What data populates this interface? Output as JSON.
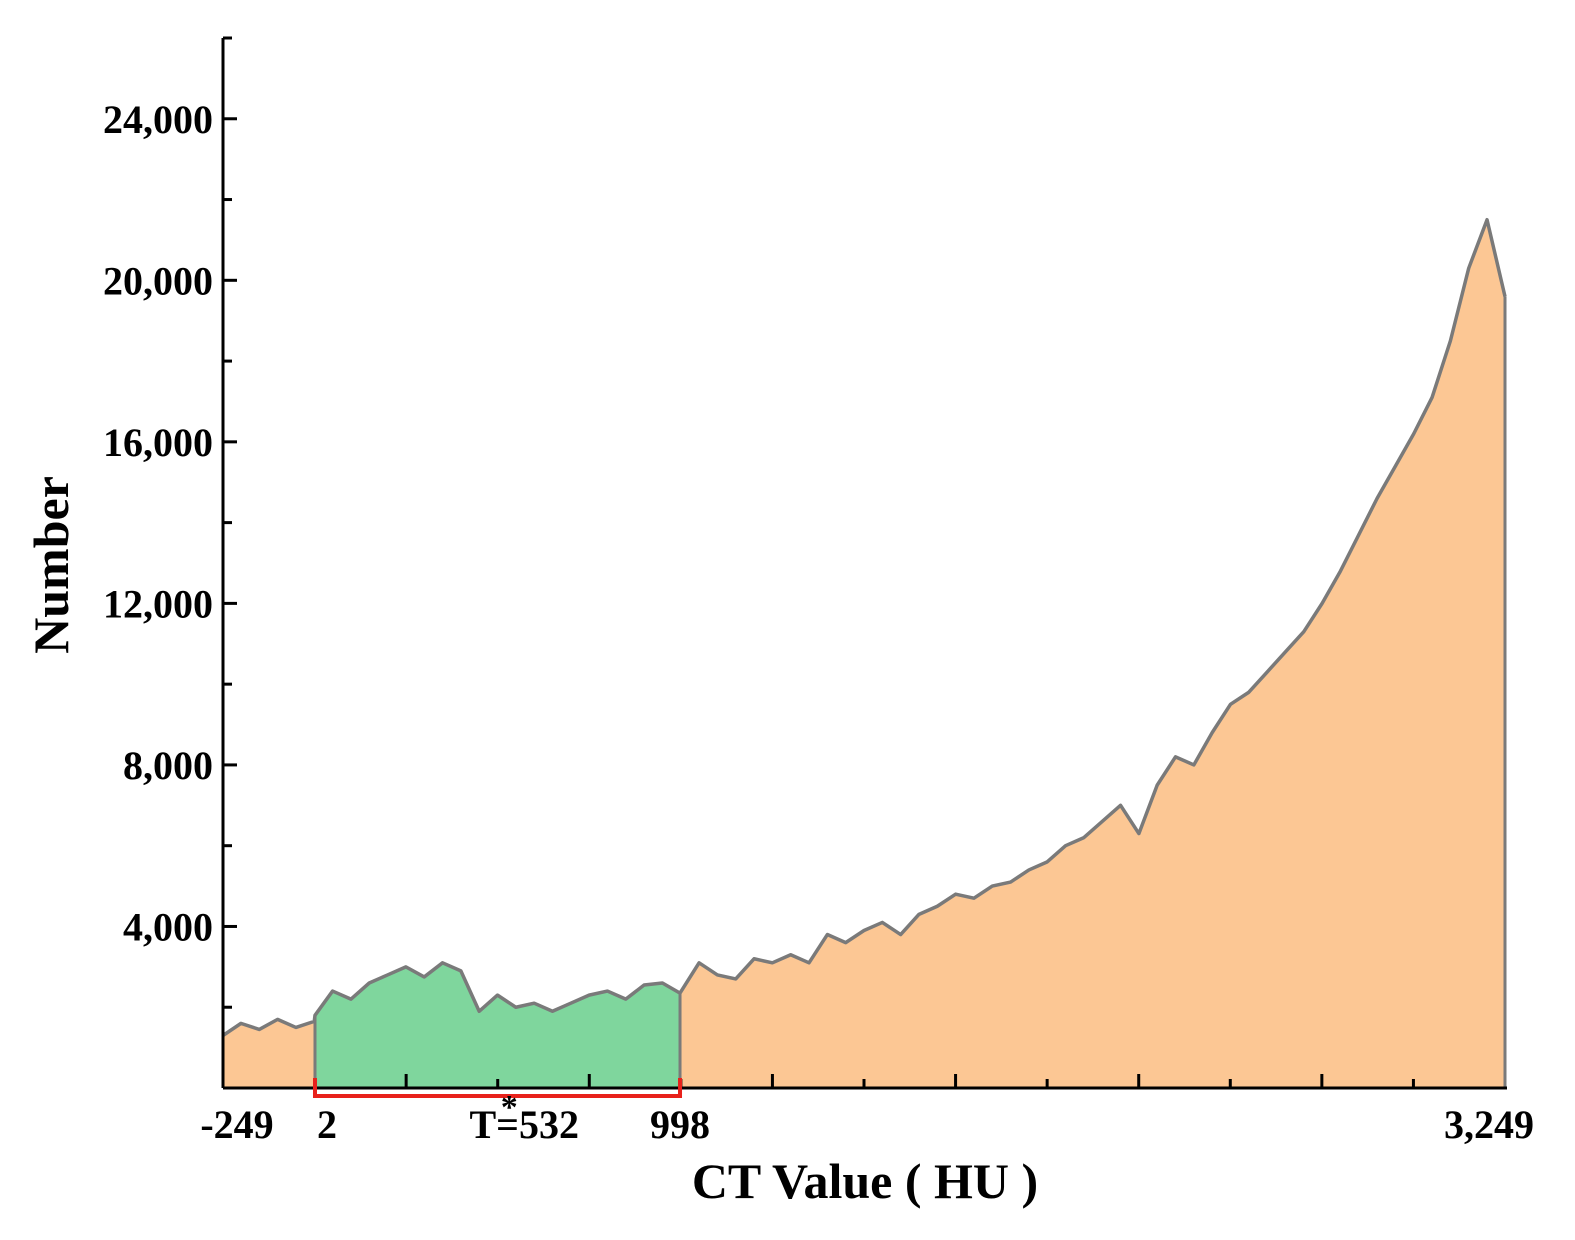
{
  "chart_data": {
    "type": "area",
    "title": "",
    "xlabel": "CT Value ( HU )",
    "ylabel": "Number",
    "xlim": [
      -249,
      3249
    ],
    "ylim": [
      0,
      26000
    ],
    "y_ticks": [
      4000,
      8000,
      12000,
      16000,
      20000,
      24000
    ],
    "y_tick_labels": [
      "4,000",
      "8,000",
      "12,000",
      "16,000",
      "20,000",
      "24,000"
    ],
    "x_tick_labels": [
      {
        "value": -249,
        "label": "-249"
      },
      {
        "value": 2,
        "label": "2"
      },
      {
        "value": 532,
        "label": "T=532"
      },
      {
        "value": 998,
        "label": "998"
      },
      {
        "value": 3249,
        "label": "3,249"
      }
    ],
    "highlight_range": [
      2,
      998
    ],
    "threshold": {
      "value": 532,
      "marker": "*"
    },
    "grid": false,
    "colors": {
      "fill": "#fcc794",
      "highlight_fill": "#7fd69d",
      "line": "#7a7a7a",
      "bracket": "#e8211b",
      "axis": "#000000"
    },
    "series": [
      {
        "x": [
          -249,
          -200,
          -150,
          -100,
          -50,
          0,
          2,
          50,
          100,
          150,
          200,
          250,
          300,
          350,
          400,
          450,
          500,
          550,
          600,
          650,
          700,
          750,
          800,
          850,
          900,
          950,
          998,
          1050,
          1100,
          1150,
          1200,
          1250,
          1300,
          1350,
          1400,
          1450,
          1500,
          1550,
          1600,
          1650,
          1700,
          1750,
          1800,
          1850,
          1900,
          1950,
          2000,
          2050,
          2100,
          2150,
          2200,
          2250,
          2300,
          2350,
          2400,
          2450,
          2500,
          2550,
          2600,
          2650,
          2700,
          2750,
          2800,
          2850,
          2900,
          2950,
          3000,
          3050,
          3100,
          3150,
          3200,
          3249
        ],
        "y": [
          1300,
          1600,
          1450,
          1700,
          1500,
          1650,
          1800,
          2400,
          2200,
          2600,
          2800,
          3000,
          2750,
          3100,
          2900,
          1900,
          2300,
          2000,
          2100,
          1900,
          2100,
          2300,
          2400,
          2200,
          2550,
          2600,
          2350,
          3100,
          2800,
          2700,
          3200,
          3100,
          3300,
          3100,
          3800,
          3600,
          3900,
          4100,
          3800,
          4300,
          4500,
          4800,
          4700,
          5000,
          5100,
          5400,
          5600,
          6000,
          6200,
          6600,
          7000,
          6300,
          7500,
          8200,
          8000,
          8800,
          9500,
          9800,
          10300,
          10800,
          11300,
          12000,
          12800,
          13700,
          14600,
          15400,
          16200,
          17100,
          18500,
          20300,
          21500,
          19600
        ]
      }
    ]
  }
}
